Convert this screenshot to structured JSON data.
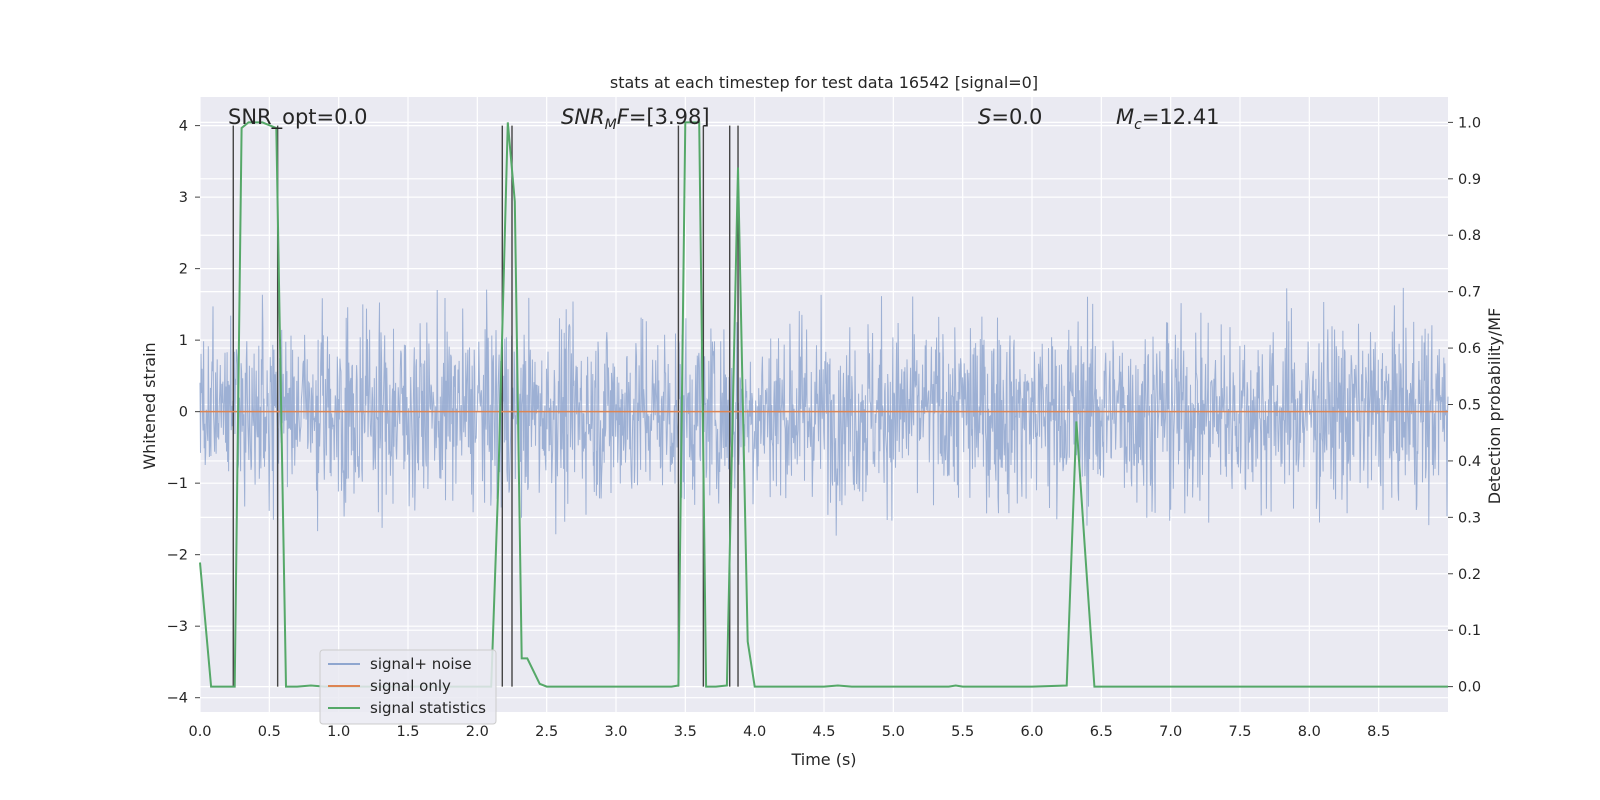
{
  "chart_data": {
    "type": "line",
    "title": "stats at each timestep for test data 16542 [signal=0]",
    "xlabel": "Time (s)",
    "ylabel": "Whitened strain",
    "ylabel_right": "Detection probability/MF",
    "xlim": [
      0.0,
      9.0
    ],
    "ylim": [
      -4.2,
      4.4
    ],
    "ylim_right": [
      -0.045,
      1.045
    ],
    "x_ticks": [
      "0.0",
      "0.5",
      "1.0",
      "1.5",
      "2.0",
      "2.5",
      "3.0",
      "3.5",
      "4.0",
      "4.5",
      "5.0",
      "5.5",
      "6.0",
      "6.5",
      "7.0",
      "7.5",
      "8.0",
      "8.5"
    ],
    "y_ticks": [
      "−4",
      "−3",
      "−2",
      "−1",
      "0",
      "1",
      "2",
      "3",
      "4"
    ],
    "y_ticks_right": [
      "0.0",
      "0.1",
      "0.2",
      "0.3",
      "0.4",
      "0.5",
      "0.6",
      "0.7",
      "0.8",
      "0.9",
      "1.0"
    ],
    "grid": true,
    "legend_position": "lower-left",
    "annotations": {
      "snr_opt": "SNR_opt=0.0",
      "snr_mf_sym": "SNR",
      "snr_mf_sub": "M",
      "snr_mf_sym2": "F",
      "snr_mf_val": "=[3.98]",
      "s_sym": "S",
      "s_val": "=0.0",
      "mc_sym": "M",
      "mc_sub": "c",
      "mc_val": "=12.41"
    },
    "series": [
      {
        "name": "signal+ noise",
        "color": "#8fa6cf",
        "envelope": {
          "typical_abs": 1.5,
          "peak_max": 4.0,
          "peak_min": -3.7
        }
      },
      {
        "name": "signal only",
        "color": "#dd8452",
        "values_constant": 0.0
      },
      {
        "name": "signal statistics",
        "color": "#55a868",
        "axis": "right",
        "x": [
          0.0,
          0.08,
          0.25,
          0.3,
          0.35,
          0.45,
          0.55,
          0.62,
          0.7,
          0.8,
          0.9,
          1.0,
          2.0,
          2.1,
          2.15,
          2.22,
          2.27,
          2.32,
          2.36,
          2.45,
          2.5,
          2.6,
          3.0,
          3.4,
          3.45,
          3.5,
          3.55,
          3.6,
          3.65,
          3.72,
          3.8,
          3.88,
          3.95,
          4.0,
          4.1,
          4.5,
          4.6,
          4.7,
          5.0,
          5.4,
          5.45,
          5.5,
          6.0,
          6.25,
          6.32,
          6.38,
          6.45,
          6.5,
          7.0,
          8.0,
          9.0
        ],
        "values": [
          0.22,
          0.0,
          0.0,
          0.99,
          1.0,
          1.0,
          0.99,
          0.0,
          0.0,
          0.002,
          0.0,
          0.0,
          0.0,
          0.0,
          0.35,
          1.0,
          0.86,
          0.05,
          0.05,
          0.005,
          0.0,
          0.0,
          0.0,
          0.0,
          0.002,
          1.0,
          1.0,
          1.0,
          0.0,
          0.0,
          0.002,
          0.92,
          0.08,
          0.0,
          0.0,
          0.0,
          0.002,
          0.0,
          0.0,
          0.0,
          0.002,
          0.0,
          0.0,
          0.002,
          0.47,
          0.25,
          0.0,
          0.0,
          0.0,
          0.0,
          0.0
        ]
      }
    ],
    "vertical_markers_x": [
      0.24,
      0.56,
      2.18,
      2.25,
      3.45,
      3.63,
      3.82,
      3.88
    ]
  }
}
